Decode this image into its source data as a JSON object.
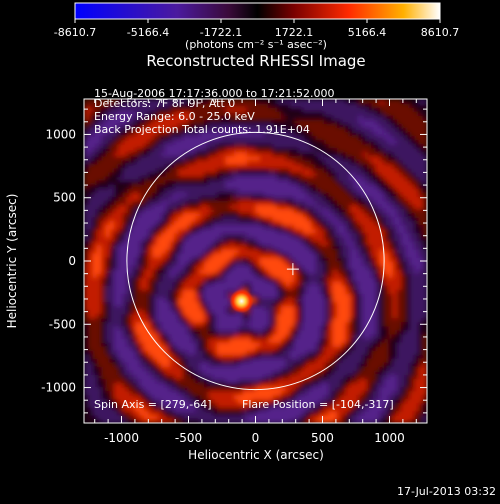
{
  "colorbar": {
    "tick_labels": [
      "-8610.7",
      "-5166.4",
      "-1722.1",
      "1722.1",
      "5166.4",
      "8610.7"
    ],
    "units_label": "(photons cm⁻² s⁻¹ asec⁻²)",
    "colors": [
      "#0000ff",
      "#4b1a9e",
      "#3a0a3a",
      "#000000",
      "#7a0000",
      "#ff2a00",
      "#ffb000",
      "#ffffff"
    ]
  },
  "plot": {
    "title": "Reconstructed RHESSI Image",
    "info_lines": [
      "15-Aug-2006 17:17:36.000 to 17:21:52.000",
      "Detectors: 7F 8F 9F, Att 0",
      "Energy Range: 6.0 - 25.0 keV",
      "Back Projection      Total counts: 1.91E+04"
    ],
    "spin_axis": "Spin Axis = [279,-64]",
    "flare_position": "Flare Position = [-104,-317]",
    "xlabel": "Heliocentric X (arcsec)",
    "ylabel": "Heliocentric Y (arcsec)"
  },
  "timestamp": "17-Jul-2013 03:32",
  "chart_data": {
    "type": "heatmap",
    "title": "Reconstructed RHESSI Image",
    "xlabel": "Heliocentric X (arcsec)",
    "ylabel": "Heliocentric Y (arcsec)",
    "xlim": [
      -1280,
      1280
    ],
    "ylim": [
      -1280,
      1280
    ],
    "x_ticks": [
      -1000,
      -500,
      0,
      500,
      1000
    ],
    "y_ticks": [
      -1000,
      -500,
      0,
      500,
      1000
    ],
    "colorbar_range": [
      -8610.7,
      8610.7
    ],
    "colorbar_ticks": [
      -8610.7,
      -5166.4,
      -1722.1,
      1722.1,
      5166.4,
      8610.7
    ],
    "colorbar_units": "(photons cm⁻² s⁻¹ asec⁻²)",
    "solar_limb_radius": 960,
    "spin_axis": [
      279,
      -64
    ],
    "flare_position": [
      -104,
      -317
    ],
    "time_range": [
      "15-Aug-2006 17:17:36.000",
      "17:21:52.000"
    ],
    "detectors": "7F 8F 9F",
    "attenuator": 0,
    "energy_range_kev": [
      6.0,
      25.0
    ],
    "algorithm": "Back Projection",
    "total_counts": 19100
  }
}
